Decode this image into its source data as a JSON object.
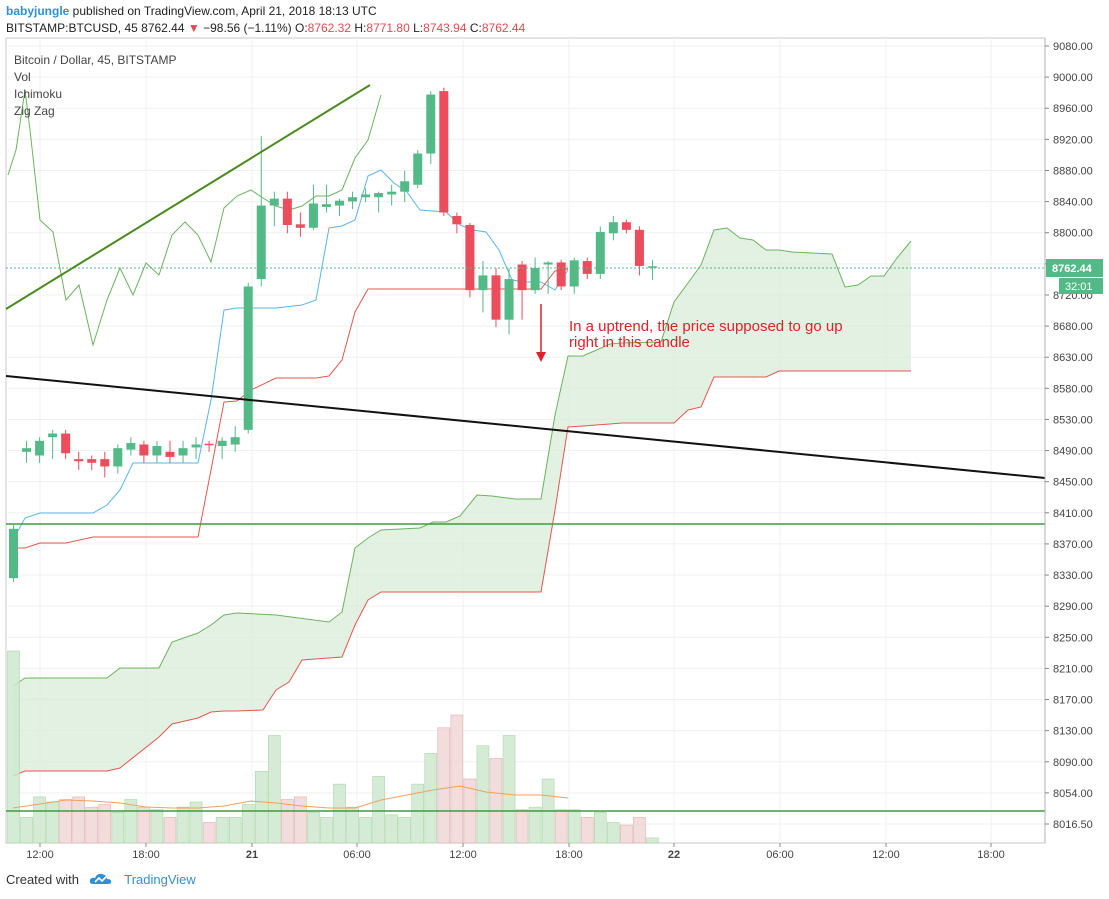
{
  "header": {
    "publisher": "babyjungle",
    "published_text": " published on TradingView.com, April 21, 2018 18:13 UTC",
    "symbol": "BITSTAMP:BTCUSD, 45",
    "last": "8762.44",
    "change": "−98.56 (−1.11%)",
    "o_label": "O:",
    "o": "8762.32",
    "h_label": "H:",
    "h": "8771.80",
    "l_label": "L:",
    "l": "8743.94",
    "c_label": "C:",
    "c": "8762.44"
  },
  "legend": [
    "Bitcoin / Dollar, 45, BITSTAMP",
    "Vol",
    "Ichimoku",
    "Zig Zag"
  ],
  "annotation": {
    "line1": "In a uptrend, the price supposed to go up",
    "line2": "right in this candle"
  },
  "price_tag": "8762.44",
  "time_tag": "32:01",
  "footer": {
    "created": "Created with",
    "brand": "TradingView"
  },
  "colors": {
    "up": "#53b987",
    "down": "#eb4d5c",
    "tenkan": "#5ab4e8",
    "kijun": "#e5574e",
    "cloud": "#d6ebd6"
  },
  "chart_data": {
    "type": "candlestick",
    "symbol": "BITSTAMP:BTCUSD",
    "interval": "45",
    "y_ticks": [
      "9080.00",
      "9000.00",
      "8960.00",
      "8920.00",
      "8880.00",
      "8840.00",
      "8800.00",
      "8760.00",
      "8720.00",
      "8680.00",
      "8630.00",
      "8580.00",
      "8530.00",
      "8490.00",
      "8450.00",
      "8410.00",
      "8370.00",
      "8330.00",
      "8290.00",
      "8250.00",
      "8210.00",
      "8170.00",
      "8130.00",
      "8090.00",
      "8054.00",
      "8016.50"
    ],
    "x_ticks": [
      "12:00",
      "18:00",
      "21",
      "06:00",
      "12:00",
      "18:00",
      "22",
      "06:00",
      "12:00",
      "18:00"
    ],
    "candles": [
      {
        "o": 8340,
        "h": 8410,
        "l": 8335,
        "c": 8405
      },
      {
        "o": 8510,
        "h": 8525,
        "l": 8495,
        "c": 8515
      },
      {
        "o": 8505,
        "h": 8530,
        "l": 8495,
        "c": 8525
      },
      {
        "o": 8530,
        "h": 8540,
        "l": 8500,
        "c": 8535
      },
      {
        "o": 8535,
        "h": 8540,
        "l": 8500,
        "c": 8508
      },
      {
        "o": 8500,
        "h": 8510,
        "l": 8485,
        "c": 8497
      },
      {
        "o": 8500,
        "h": 8505,
        "l": 8485,
        "c": 8495
      },
      {
        "o": 8500,
        "h": 8510,
        "l": 8475,
        "c": 8490
      },
      {
        "o": 8490,
        "h": 8520,
        "l": 8480,
        "c": 8515
      },
      {
        "o": 8513,
        "h": 8530,
        "l": 8505,
        "c": 8522
      },
      {
        "o": 8520,
        "h": 8525,
        "l": 8495,
        "c": 8505
      },
      {
        "o": 8505,
        "h": 8525,
        "l": 8495,
        "c": 8518
      },
      {
        "o": 8510,
        "h": 8525,
        "l": 8495,
        "c": 8503
      },
      {
        "o": 8505,
        "h": 8525,
        "l": 8495,
        "c": 8515
      },
      {
        "o": 8516,
        "h": 8530,
        "l": 8500,
        "c": 8520
      },
      {
        "o": 8521,
        "h": 8525,
        "l": 8510,
        "c": 8519
      },
      {
        "o": 8518,
        "h": 8530,
        "l": 8500,
        "c": 8525
      },
      {
        "o": 8520,
        "h": 8545,
        "l": 8510,
        "c": 8530
      },
      {
        "o": 8540,
        "h": 8740,
        "l": 8535,
        "c": 8735
      },
      {
        "o": 8745,
        "h": 8950,
        "l": 8735,
        "c": 8850
      },
      {
        "o": 8850,
        "h": 8870,
        "l": 8820,
        "c": 8860
      },
      {
        "o": 8860,
        "h": 8870,
        "l": 8810,
        "c": 8822
      },
      {
        "o": 8823,
        "h": 8840,
        "l": 8805,
        "c": 8818
      },
      {
        "o": 8818,
        "h": 8880,
        "l": 8815,
        "c": 8853
      },
      {
        "o": 8848,
        "h": 8880,
        "l": 8840,
        "c": 8852
      },
      {
        "o": 8850,
        "h": 8860,
        "l": 8835,
        "c": 8857
      },
      {
        "o": 8856,
        "h": 8870,
        "l": 8845,
        "c": 8862
      },
      {
        "o": 8862,
        "h": 8875,
        "l": 8855,
        "c": 8866
      },
      {
        "o": 8862,
        "h": 8870,
        "l": 8840,
        "c": 8868
      },
      {
        "o": 8866,
        "h": 8880,
        "l": 8850,
        "c": 8870
      },
      {
        "o": 8870,
        "h": 8900,
        "l": 8855,
        "c": 8885
      },
      {
        "o": 8880,
        "h": 8930,
        "l": 8875,
        "c": 8925
      },
      {
        "o": 8925,
        "h": 9015,
        "l": 8910,
        "c": 9010
      },
      {
        "o": 9015,
        "h": 9020,
        "l": 8835,
        "c": 8840
      },
      {
        "o": 8835,
        "h": 8840,
        "l": 8810,
        "c": 8823
      },
      {
        "o": 8822,
        "h": 8825,
        "l": 8720,
        "c": 8730
      },
      {
        "o": 8730,
        "h": 8770,
        "l": 8700,
        "c": 8750
      },
      {
        "o": 8750,
        "h": 8760,
        "l": 8680,
        "c": 8690
      },
      {
        "o": 8690,
        "h": 8760,
        "l": 8670,
        "c": 8745
      },
      {
        "o": 8765,
        "h": 8770,
        "l": 8690,
        "c": 8730
      },
      {
        "o": 8730,
        "h": 8775,
        "l": 8725,
        "c": 8760
      },
      {
        "o": 8765,
        "h": 8770,
        "l": 8725,
        "c": 8768
      },
      {
        "o": 8768,
        "h": 8772,
        "l": 8730,
        "c": 8735
      },
      {
        "o": 8735,
        "h": 8775,
        "l": 8725,
        "c": 8771
      },
      {
        "o": 8770,
        "h": 8775,
        "l": 8745,
        "c": 8752
      },
      {
        "o": 8752,
        "h": 8820,
        "l": 8745,
        "c": 8812
      },
      {
        "o": 8810,
        "h": 8835,
        "l": 8800,
        "c": 8826
      },
      {
        "o": 8826,
        "h": 8830,
        "l": 8810,
        "c": 8815
      },
      {
        "o": 8815,
        "h": 8820,
        "l": 8750,
        "c": 8763
      },
      {
        "o": 8762.32,
        "h": 8771.8,
        "l": 8743.94,
        "c": 8762.44
      }
    ],
    "volumes": [
      0.75,
      0.1,
      0.18,
      0.16,
      0.17,
      0.18,
      0.14,
      0.15,
      0.12,
      0.17,
      0.14,
      0.13,
      0.1,
      0.14,
      0.16,
      0.08,
      0.1,
      0.1,
      0.15,
      0.28,
      0.42,
      0.17,
      0.18,
      0.12,
      0.1,
      0.23,
      0.14,
      0.1,
      0.26,
      0.11,
      0.1,
      0.23,
      0.35,
      0.45,
      0.5,
      0.25,
      0.38,
      0.33,
      0.42,
      0.13,
      0.14,
      0.25,
      0.13,
      0.13,
      0.1,
      0.12,
      0.08,
      0.07,
      0.1,
      0.02
    ],
    "horizontal_levels": [
      8410,
      8054
    ],
    "arrow_price": [
      8725,
      8630
    ]
  }
}
